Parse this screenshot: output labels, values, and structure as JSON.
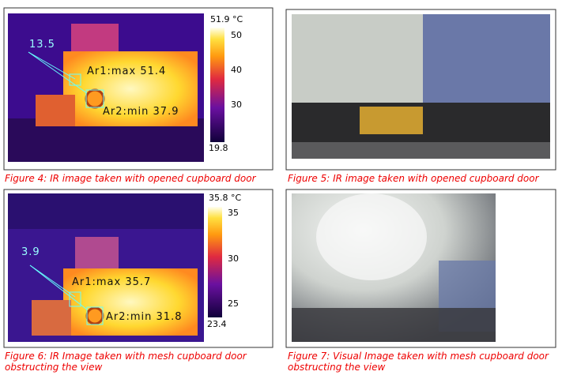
{
  "figures": [
    {
      "caption": "Figure 4: IR image taken with opened cupboard door",
      "spot": "13.5",
      "ar1": "Ar1:max 51.4",
      "ar2": "Ar2:min 37.9",
      "scale_max": "51.9 °C",
      "scale_ticks": [
        "50",
        "40",
        "30"
      ],
      "scale_min": "19.8"
    },
    {
      "caption": "Figure 5: IR image taken with opened cupboard door"
    },
    {
      "caption": "Figure 6: IR Image taken with mesh cupboard door obstructing the view",
      "spot": "3.9",
      "ar1": "Ar1:max 35.7",
      "ar2": "Ar2:min 31.8",
      "scale_max": "35.8 °C",
      "scale_ticks": [
        "35",
        "30",
        "25"
      ],
      "scale_min": "23.4"
    },
    {
      "caption": "Figure 7: Visual Image taken with mesh cupboard door obstructing the view"
    }
  ]
}
